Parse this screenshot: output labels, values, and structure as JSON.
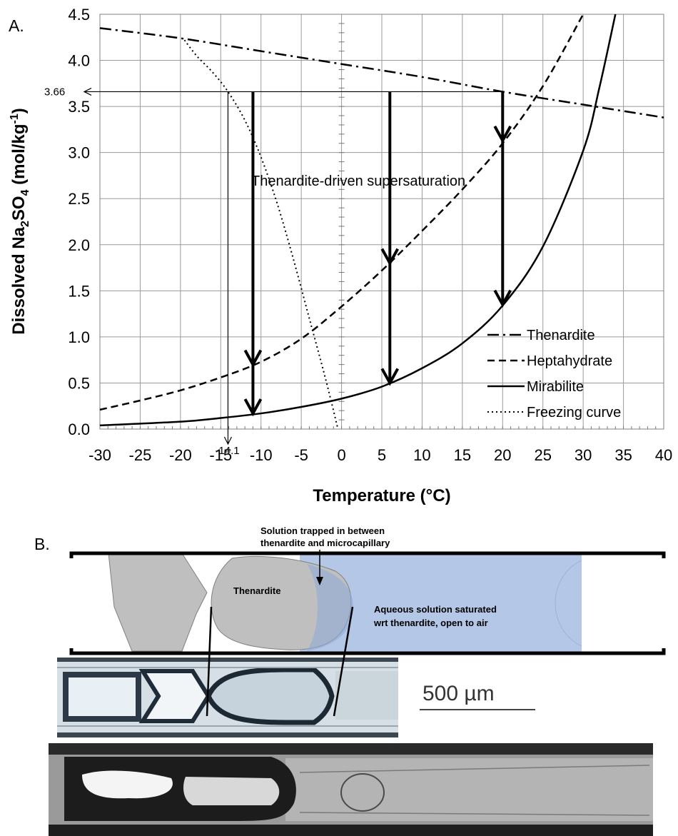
{
  "panel_a_label": "A.",
  "panel_b_label": "B.",
  "chart_data": {
    "type": "line",
    "xlabel": "Temperature (°C)",
    "ylabel_parts": [
      "Dissolved Na",
      "2",
      "SO",
      "4",
      " (mol/kg",
      "-1",
      ")"
    ],
    "xlim": [
      -30,
      40
    ],
    "ylim": [
      0,
      4.5
    ],
    "x_ticks": [
      "-30",
      "-25",
      "-20",
      "-15",
      "-10",
      "-5",
      "0",
      "5",
      "10",
      "15",
      "20",
      "25",
      "30",
      "35",
      "40"
    ],
    "y_ticks": [
      "0.0",
      "0.5",
      "1.0",
      "1.5",
      "2.0",
      "2.5",
      "3.0",
      "3.5",
      "4.0",
      "4.5"
    ],
    "grid": true,
    "legend_position": "bottom-right",
    "series": [
      {
        "name": "Thenardite",
        "style": "dashdot",
        "x": [
          -30,
          -20,
          -10,
          0,
          10,
          20,
          30,
          40
        ],
        "y": [
          4.35,
          4.24,
          4.1,
          3.96,
          3.82,
          3.66,
          3.52,
          3.38
        ]
      },
      {
        "name": "Heptahydrate",
        "style": "dashed",
        "x": [
          -30,
          -25,
          -20,
          -15,
          -10,
          -5,
          0,
          5,
          10,
          15,
          20,
          25,
          30
        ],
        "y": [
          0.21,
          0.31,
          0.42,
          0.56,
          0.73,
          0.98,
          1.33,
          1.72,
          2.15,
          2.6,
          3.1,
          3.72,
          4.5
        ]
      },
      {
        "name": "Mirabilite",
        "style": "solid",
        "x": [
          -30,
          -20,
          -15,
          -10,
          -5,
          0,
          5,
          10,
          15,
          20,
          25,
          30,
          32,
          34
        ],
        "y": [
          0.04,
          0.08,
          0.12,
          0.17,
          0.24,
          0.33,
          0.46,
          0.66,
          0.93,
          1.34,
          1.98,
          3.02,
          3.7,
          4.5
        ]
      },
      {
        "name": "Freezing curve",
        "style": "dotted",
        "x": [
          -19.5,
          -18,
          -16,
          -14.1,
          -12,
          -10,
          -8,
          -6,
          -4,
          -2,
          -0.5
        ],
        "y": [
          4.22,
          4.05,
          3.87,
          3.66,
          3.35,
          2.95,
          2.45,
          1.85,
          1.2,
          0.55,
          0.02
        ]
      }
    ],
    "arrows": [
      {
        "x": -11,
        "y_from": 3.66,
        "y_to": 0.17,
        "mid_heads": [
          0.7
        ]
      },
      {
        "x": 6,
        "y_from": 3.66,
        "y_to": 0.5,
        "mid_heads": [
          1.8
        ]
      },
      {
        "x": 20,
        "y_from": 3.66,
        "y_to": 1.35,
        "mid_heads": [
          3.13
        ]
      }
    ],
    "reference_y": 3.66,
    "reference_y_label": "3.66",
    "reference_x": -14.1,
    "reference_x_label": "-14.1",
    "annotation": "Thenardite-driven supersaturation"
  },
  "schematic": {
    "trapped_label_line1": "Solution trapped in between",
    "trapped_label_line2": "thenardite and microcapillary",
    "thenardite_label": "Thenardite",
    "solution_label_line1": "Aqueous solution saturated",
    "solution_label_line2": "wrt thenardite, open to air",
    "solution_color": "#b4c7e7",
    "crystal_color": "#bfbfbf"
  },
  "scale_bar_label": "500 µm"
}
